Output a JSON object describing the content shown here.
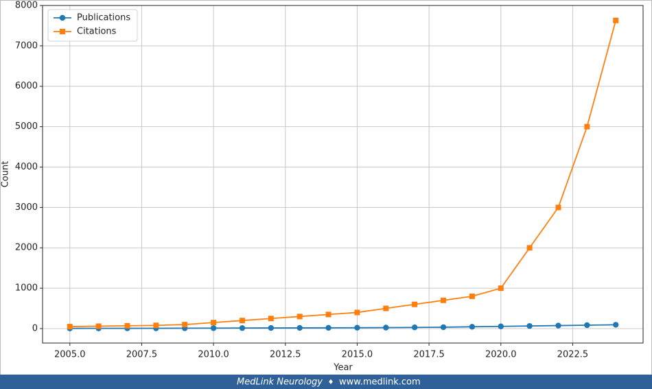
{
  "chart_data": {
    "type": "line",
    "x": [
      2005,
      2006,
      2007,
      2008,
      2009,
      2010,
      2011,
      2012,
      2013,
      2014,
      2015,
      2016,
      2017,
      2018,
      2019,
      2020,
      2021,
      2022,
      2023,
      2024
    ],
    "series": [
      {
        "name": "Publications",
        "color": "#1f77b4",
        "marker": "circle",
        "values": [
          5,
          6,
          7,
          8,
          10,
          12,
          14,
          16,
          18,
          20,
          22,
          25,
          30,
          35,
          45,
          55,
          65,
          75,
          85,
          95
        ]
      },
      {
        "name": "Citations",
        "color": "#ff7f0e",
        "marker": "square",
        "values": [
          50,
          60,
          70,
          80,
          100,
          150,
          200,
          250,
          300,
          350,
          400,
          500,
          600,
          700,
          800,
          1000,
          2000,
          3000,
          5000,
          7630
        ]
      }
    ],
    "xlabel": "Year",
    "ylabel": "Count",
    "xlim": [
      2004.05,
      2024.95
    ],
    "ylim": [
      -357,
      8000
    ],
    "xticks": [
      {
        "value": 2005,
        "label": "2005.0"
      },
      {
        "value": 2007.5,
        "label": "2007.5"
      },
      {
        "value": 2010,
        "label": "2010.0"
      },
      {
        "value": 2012.5,
        "label": "2012.5"
      },
      {
        "value": 2015,
        "label": "2015.0"
      },
      {
        "value": 2017.5,
        "label": "2017.5"
      },
      {
        "value": 2020,
        "label": "2020.0"
      },
      {
        "value": 2022.5,
        "label": "2022.5"
      }
    ],
    "yticks": [
      0,
      1000,
      2000,
      3000,
      4000,
      5000,
      6000,
      7000,
      8000
    ],
    "grid": true,
    "legend": "upper-left"
  },
  "footer": {
    "brand": "MedLink Neurology",
    "separator": "♦",
    "url": "www.medlink.com"
  }
}
